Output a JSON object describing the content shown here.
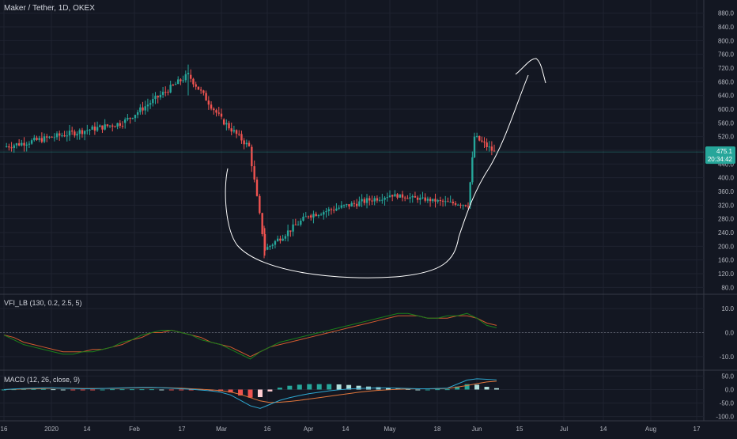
{
  "header": {
    "title": "Maker / Tether, 1D, OKEX"
  },
  "price_pane": {
    "last_price": "475.1",
    "countdown": "20:34:42",
    "badge_color": "#26a69a"
  },
  "vfi_pane": {
    "label": "VFI_LB (130, 0.2, 2.5, 5)"
  },
  "macd_pane": {
    "label": "MACD (12, 26, close, 9)"
  },
  "colors": {
    "up": "#26a69a",
    "down": "#ef5350",
    "vfi": "#1b7f1b",
    "vfi_signal": "#d05a2f",
    "macd": "#2ea8d1",
    "macd_signal": "#e0763c",
    "drawing": "#ffffff"
  },
  "chart_data": [
    {
      "type": "candlestick",
      "ylim": [
        60,
        900
      ],
      "y_ticks": [
        "880.0",
        "840.0",
        "800.0",
        "760.0",
        "720.0",
        "680.0",
        "640.0",
        "600.0",
        "560.0",
        "520.0",
        "480.0",
        "440.0",
        "400.0",
        "360.0",
        "320.0",
        "280.0",
        "240.0",
        "200.0",
        "160.0",
        "120.0",
        "80.0"
      ],
      "x_ticks": [
        "16",
        "2020",
        "14",
        "Feb",
        "17",
        "Mar",
        "16",
        "Apr",
        "14",
        "May",
        "18",
        "Jun",
        "15",
        "Jul",
        "14",
        "Aug",
        "17"
      ],
      "segments": [
        {
          "from": "16 Dec",
          "to": "10 Feb",
          "start": 490,
          "end": 560,
          "trend": "up"
        },
        {
          "from": "10 Feb",
          "to": "17 Feb",
          "start": 560,
          "end": 700,
          "trend": "up"
        },
        {
          "from": "17 Feb",
          "to": "Mar",
          "start": 700,
          "end": 570,
          "trend": "down"
        },
        {
          "from": "Mar",
          "to": "12 Mar",
          "start": 570,
          "end": 490,
          "trend": "down"
        },
        {
          "from": "12 Mar",
          "to": "16 Mar",
          "start": 490,
          "end": 190,
          "trend": "down"
        },
        {
          "from": "16 Mar",
          "to": "Apr",
          "start": 190,
          "end": 290,
          "trend": "up"
        },
        {
          "from": "Apr",
          "to": "May",
          "start": 290,
          "end": 350,
          "trend": "up"
        },
        {
          "from": "May",
          "to": "27 May",
          "start": 350,
          "end": 320,
          "trend": "flat"
        },
        {
          "from": "27 May",
          "to": "29 May",
          "start": 320,
          "end": 520,
          "trend": "up"
        },
        {
          "from": "29 May",
          "to": "5 Jun",
          "start": 520,
          "end": 475,
          "trend": "down"
        }
      ],
      "last": 475.1,
      "high": 730,
      "low": 165
    },
    {
      "type": "line",
      "title": "VFI_LB (130, 0.2, 2.5, 5)",
      "ylim": [
        -15,
        14
      ],
      "y_ticks": [
        "10.0",
        "0.0",
        "-10.0"
      ],
      "series": [
        {
          "values": [
            -1,
            -3,
            -5,
            -6,
            -7,
            -8,
            -9,
            -9,
            -8,
            -8,
            -7,
            -6,
            -4,
            -3,
            -1,
            0,
            1,
            1,
            0,
            -1,
            -3,
            -4,
            -5,
            -7,
            -9,
            -11,
            -8,
            -6,
            -4,
            -3,
            -2,
            -1,
            0,
            1,
            2,
            3,
            4,
            5,
            6,
            7,
            8,
            8,
            7,
            6,
            6,
            7,
            7,
            8,
            6,
            3,
            2
          ]
        },
        {
          "values": [
            -1,
            -2,
            -4,
            -5,
            -6,
            -7,
            -8,
            -8,
            -8,
            -7,
            -7,
            -6,
            -5,
            -3,
            -2,
            0,
            0,
            1,
            0,
            -1,
            -2,
            -4,
            -5,
            -6,
            -8,
            -10,
            -8,
            -6,
            -5,
            -4,
            -3,
            -2,
            -1,
            0,
            1,
            2,
            3,
            4,
            5,
            6,
            7,
            7,
            7,
            6,
            6,
            6,
            7,
            7,
            6,
            4,
            3
          ]
        }
      ]
    },
    {
      "type": "bar",
      "title": "MACD (12, 26, close, 9)",
      "ylim": [
        -110,
        60
      ],
      "y_ticks": [
        "50.0",
        "0.0",
        "-50.0",
        "-100.0"
      ],
      "series": [
        {
          "values": [
            0,
            2,
            4,
            5,
            6,
            6,
            5,
            4,
            3,
            3,
            4,
            5,
            6,
            7,
            8,
            8,
            7,
            5,
            3,
            1,
            -2,
            -5,
            -10,
            -20,
            -40,
            -60,
            -70,
            -55,
            -40,
            -30,
            -22,
            -15,
            -10,
            -5,
            -1,
            2,
            4,
            5,
            6,
            6,
            5,
            4,
            3,
            3,
            4,
            5,
            20,
            35,
            40,
            38,
            36
          ]
        },
        {
          "values": [
            0,
            1,
            2,
            3,
            4,
            5,
            5,
            5,
            4,
            4,
            4,
            4,
            5,
            6,
            7,
            7,
            7,
            6,
            5,
            3,
            1,
            -1,
            -4,
            -9,
            -18,
            -30,
            -42,
            -48,
            -47,
            -44,
            -40,
            -35,
            -30,
            -25,
            -20,
            -15,
            -10,
            -6,
            -3,
            -1,
            1,
            2,
            3,
            3,
            3,
            4,
            9,
            15,
            22,
            28,
            31
          ]
        }
      ],
      "histogram": [
        0,
        1,
        2,
        2,
        2,
        1,
        0,
        -1,
        -1,
        -1,
        0,
        1,
        1,
        1,
        1,
        1,
        0,
        -1,
        -2,
        -2,
        -3,
        -4,
        -6,
        -11,
        -22,
        -30,
        -28,
        -7,
        7,
        14,
        18,
        20,
        20,
        20,
        19,
        17,
        14,
        11,
        9,
        7,
        4,
        2,
        0,
        0,
        1,
        1,
        11,
        20,
        18,
        10,
        5
      ]
    }
  ]
}
